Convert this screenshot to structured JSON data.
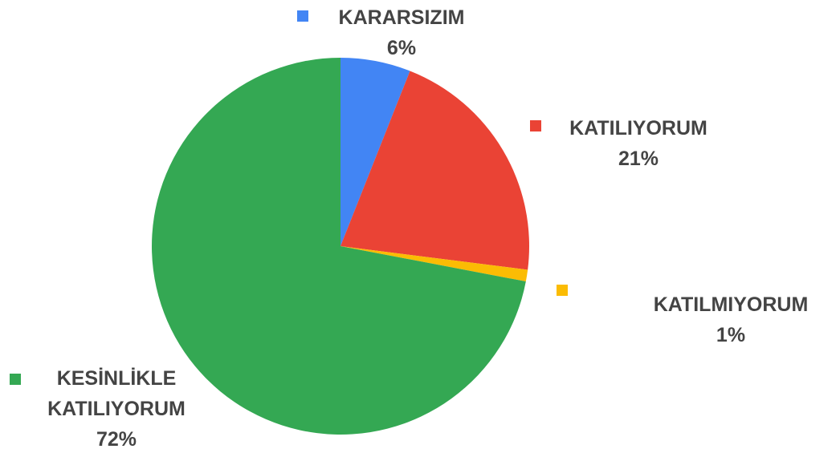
{
  "chart_data": {
    "type": "pie",
    "categories": [
      "KARARSIZIM",
      "KATILIYORUM",
      "KATILMIYORUM",
      "KESİNLİKLE KATILIYORUM"
    ],
    "values": [
      6,
      21,
      1,
      72
    ],
    "value_labels": [
      "6%",
      "21%",
      "1%",
      "72%"
    ],
    "colors": [
      "#4285f4",
      "#ea4335",
      "#fbbc04",
      "#34a853"
    ]
  }
}
